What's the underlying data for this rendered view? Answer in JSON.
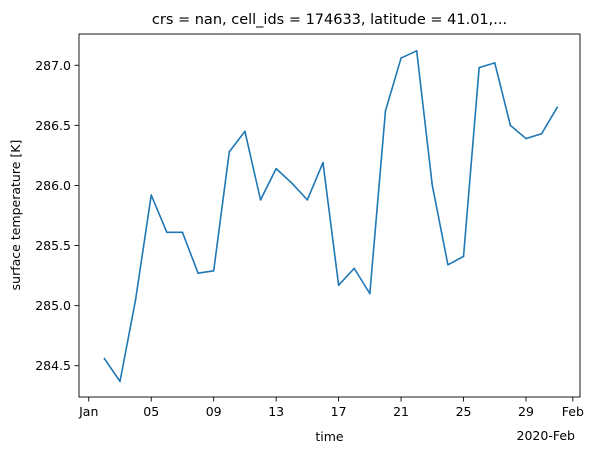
{
  "chart_data": {
    "type": "line",
    "title": "crs = nan, cell_ids = 174633, latitude = 41.01,...",
    "xlabel": "time",
    "ylabel": "surface temperature [K]",
    "x_tick_labels": [
      "Jan",
      "05",
      "09",
      "13",
      "17",
      "21",
      "25",
      "29",
      "Feb"
    ],
    "x_tick_days": [
      0,
      4,
      8,
      12,
      16,
      20,
      24,
      28,
      31
    ],
    "x_offset_label": "2020-Feb",
    "y_ticks": [
      284.5,
      285.0,
      285.5,
      286.0,
      286.5,
      287.0
    ],
    "y_tick_labels": [
      "284.5",
      "285.0",
      "285.5",
      "286.0",
      "286.5",
      "287.0"
    ],
    "xlim": [
      "2019-12-31T09:00",
      "2020-02-01T11:00"
    ],
    "ylim": [
      284.24,
      287.26
    ],
    "grid": false,
    "line_color": "#1f77b4",
    "series": [
      {
        "x": [
          "2020-01-02",
          "2020-01-03",
          "2020-01-04",
          "2020-01-05",
          "2020-01-06",
          "2020-01-07",
          "2020-01-08",
          "2020-01-09",
          "2020-01-10",
          "2020-01-11",
          "2020-01-12",
          "2020-01-13",
          "2020-01-14",
          "2020-01-15",
          "2020-01-16",
          "2020-01-17",
          "2020-01-18",
          "2020-01-19",
          "2020-01-20",
          "2020-01-21",
          "2020-01-22",
          "2020-01-23",
          "2020-01-24",
          "2020-01-25",
          "2020-01-26",
          "2020-01-27",
          "2020-01-28",
          "2020-01-29",
          "2020-01-30",
          "2020-01-31"
        ],
        "values": [
          284.56,
          284.37,
          285.05,
          285.92,
          285.61,
          285.61,
          285.27,
          285.29,
          286.28,
          286.45,
          285.88,
          286.14,
          286.02,
          285.88,
          286.19,
          285.17,
          285.31,
          285.1,
          286.62,
          287.06,
          287.12,
          286.0,
          285.34,
          285.41,
          286.98,
          287.02,
          286.5,
          286.39,
          286.43,
          286.65
        ]
      }
    ]
  }
}
